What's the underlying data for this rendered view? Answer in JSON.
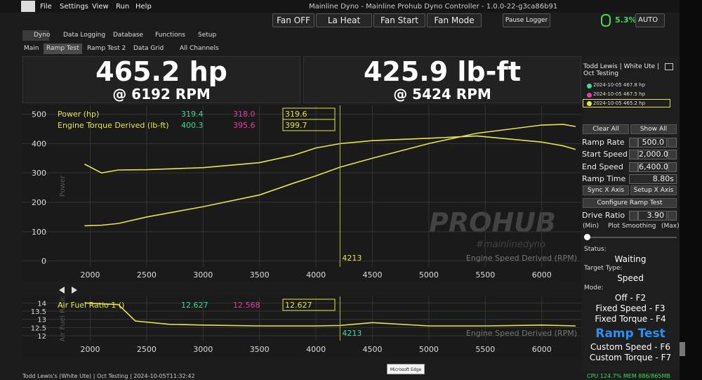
{
  "window": {
    "title": "Mainline Dyno - Mainline Prohub Dyno Controller - 1.0.0-22-g3ca86b91",
    "menu": [
      "File",
      "Settings",
      "View",
      "Run",
      "Help"
    ]
  },
  "toolbar": {
    "buttons": [
      "Fan OFF",
      "La Heat",
      "Fan Start",
      "Fan Mode"
    ],
    "pause": "Pause Logger",
    "percent": "5.3%",
    "mode": "AUTO"
  },
  "tabs": [
    "Dyno",
    "Data Logging",
    "Database",
    "Functions",
    "Setup"
  ],
  "subtabs": [
    "Main",
    "Ramp Test",
    "Ramp Test 2",
    "Data Grid",
    "All Channels"
  ],
  "readouts": [
    {
      "value": "465.2 hp",
      "sub": "@ 6192 RPM"
    },
    {
      "value": "425.9 lb-ft",
      "sub": "@ 5424 RPM"
    }
  ],
  "chart_data": [
    {
      "type": "line",
      "x_label": "Engine Speed Derived (RPM)",
      "y_label": "Power",
      "watermark": "PROHUB",
      "watermark_sub": "#mainlinedyno",
      "cursor": 4213,
      "reading_colors": [
        "#3ddc97",
        "#e040a0",
        "#e5e54b"
      ],
      "xlim": [
        1400,
        6350
      ],
      "xticks": [
        2000,
        2500,
        3000,
        3500,
        4000,
        4500,
        5000,
        5500,
        6000
      ],
      "ylim": [
        -20,
        530
      ],
      "yticks": [
        0,
        100,
        200,
        300,
        400,
        500
      ],
      "grid": true,
      "x": [
        1950,
        2100,
        2250,
        2500,
        3000,
        3500,
        3800,
        4000,
        4213,
        4500,
        5000,
        5424,
        6000,
        6192,
        6300
      ],
      "series": [
        {
          "name": "Power (hp)",
          "color": "#e5e54b",
          "readings": [
            "319.4",
            "318.0",
            "319.6"
          ],
          "values": [
            120,
            122,
            128,
            150,
            185,
            225,
            265,
            290,
            319.6,
            350,
            400,
            435,
            463,
            465.2,
            458
          ]
        },
        {
          "name": "Engine Torque Derived (lb-ft)",
          "color": "#e5e54b",
          "readings": [
            "400.3",
            "395.6",
            "399.7"
          ],
          "values": [
            330,
            300,
            310,
            311,
            318,
            335,
            360,
            385,
            399.7,
            410,
            418,
            425.9,
            405,
            392,
            380
          ]
        }
      ]
    },
    {
      "type": "line",
      "x_label": "Engine Speed Derived (RPM)",
      "y_label": "Air Fuel Ratio",
      "cursor": 4213,
      "reading_colors": [
        "#3ddc97",
        "#e040a0",
        "#e5e54b"
      ],
      "xlim": [
        1400,
        6350
      ],
      "xticks": [
        2000,
        2500,
        3000,
        3500,
        4000,
        4500,
        5000,
        5500,
        6000
      ],
      "ylim": [
        11.7,
        14.4
      ],
      "yticks": [
        12,
        12.5,
        13,
        13.5,
        14
      ],
      "grid": true,
      "x": [
        1950,
        2250,
        2400,
        2700,
        3000,
        3500,
        4000,
        4213,
        4500,
        5000,
        5500,
        6000,
        6300
      ],
      "series": [
        {
          "name": "Air Fuel Ratio 1 ()",
          "color": "#e5e54b",
          "readings": [
            "12.627",
            "12.568",
            "12.627"
          ],
          "values": [
            14,
            13.9,
            12.9,
            12.7,
            12.65,
            12.6,
            12.6,
            12.627,
            12.8,
            12.6,
            12.6,
            12.65,
            12.6
          ]
        }
      ]
    }
  ],
  "panel": {
    "session": "Todd Lewis | White Ute | Oct Testing",
    "runs": [
      "2024-10-05 467.8 hp",
      "2024-10-05 467.5 hp",
      "2024-10-05 465.2 hp"
    ],
    "clear": "Clear All",
    "show": "Show All",
    "fields": [
      {
        "label": "Ramp Rate",
        "value": "500.0"
      },
      {
        "label": "Start Speed",
        "value": "2,000.0"
      },
      {
        "label": "End Speed",
        "value": "6,400.0"
      }
    ],
    "ramp_time": {
      "label": "Ramp Time",
      "value": "8.80s"
    },
    "sync": "Sync X Axis",
    "setup_x": "Setup X Axis",
    "configure": "Configure Ramp Test",
    "drive_ratio": {
      "label": "Drive Ratio",
      "value": "3.90"
    },
    "smoothing": [
      "(Min)",
      "Plot Smoothing",
      "(Max)"
    ],
    "status_label": "Status:",
    "status": "Waiting",
    "target_label": "Target Type:",
    "target": "Speed",
    "mode_label": "Mode:",
    "modes": [
      "Off - F2",
      "Fixed Speed - F3",
      "Fixed Torque - F4",
      "Ramp Test",
      "Custom Speed - F6",
      "Custom Torque - F7"
    ]
  },
  "status": {
    "left": "Todd Lewis's (White Ute) | Oct Testing | 2024-10-05T11:32:42",
    "right": "CPU 124.7% MEM 886/865MB",
    "tooltip": "Microsoft Edge"
  }
}
